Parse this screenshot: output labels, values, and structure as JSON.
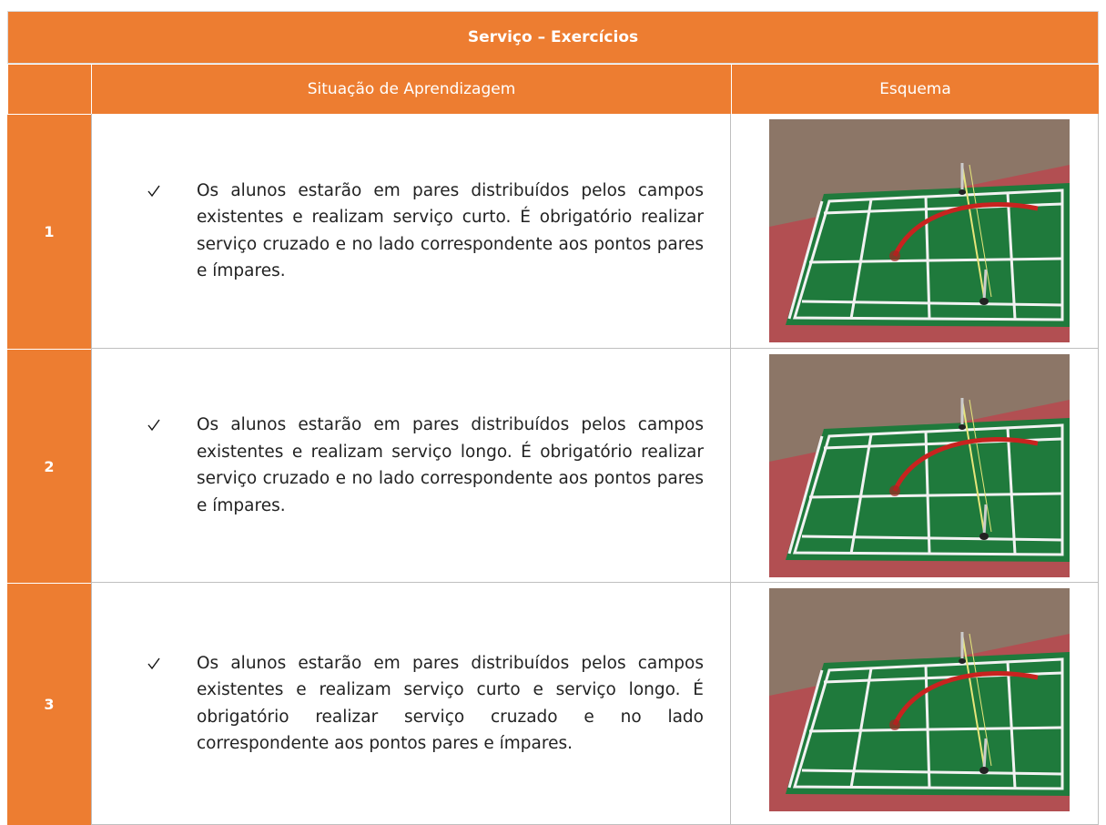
{
  "table": {
    "title": "Serviço – Exercícios",
    "headers": [
      "Situação de Aprendizagem",
      "Esquema"
    ],
    "rows": [
      {
        "number": "1",
        "text": "Os alunos estarão em pares distribuídos pelos campos existentes e realizam serviço curto. É obrigatório realizar serviço cruzado e no lado correspondente aos pontos pares e ímpares."
      },
      {
        "number": "2",
        "text": "Os alunos estarão em pares distribuídos pelos campos existentes e realizam serviço longo. É obrigatório realizar serviço cruzado e no lado correspondente aos pontos pares e ímpares."
      },
      {
        "number": "3",
        "text": "Os alunos estarão em pares distribuídos pelos campos existentes e realizam serviço curto e serviço longo. É obrigatório realizar serviço cruzado e no lado correspondente aos pontos pares e ímpares."
      }
    ]
  }
}
